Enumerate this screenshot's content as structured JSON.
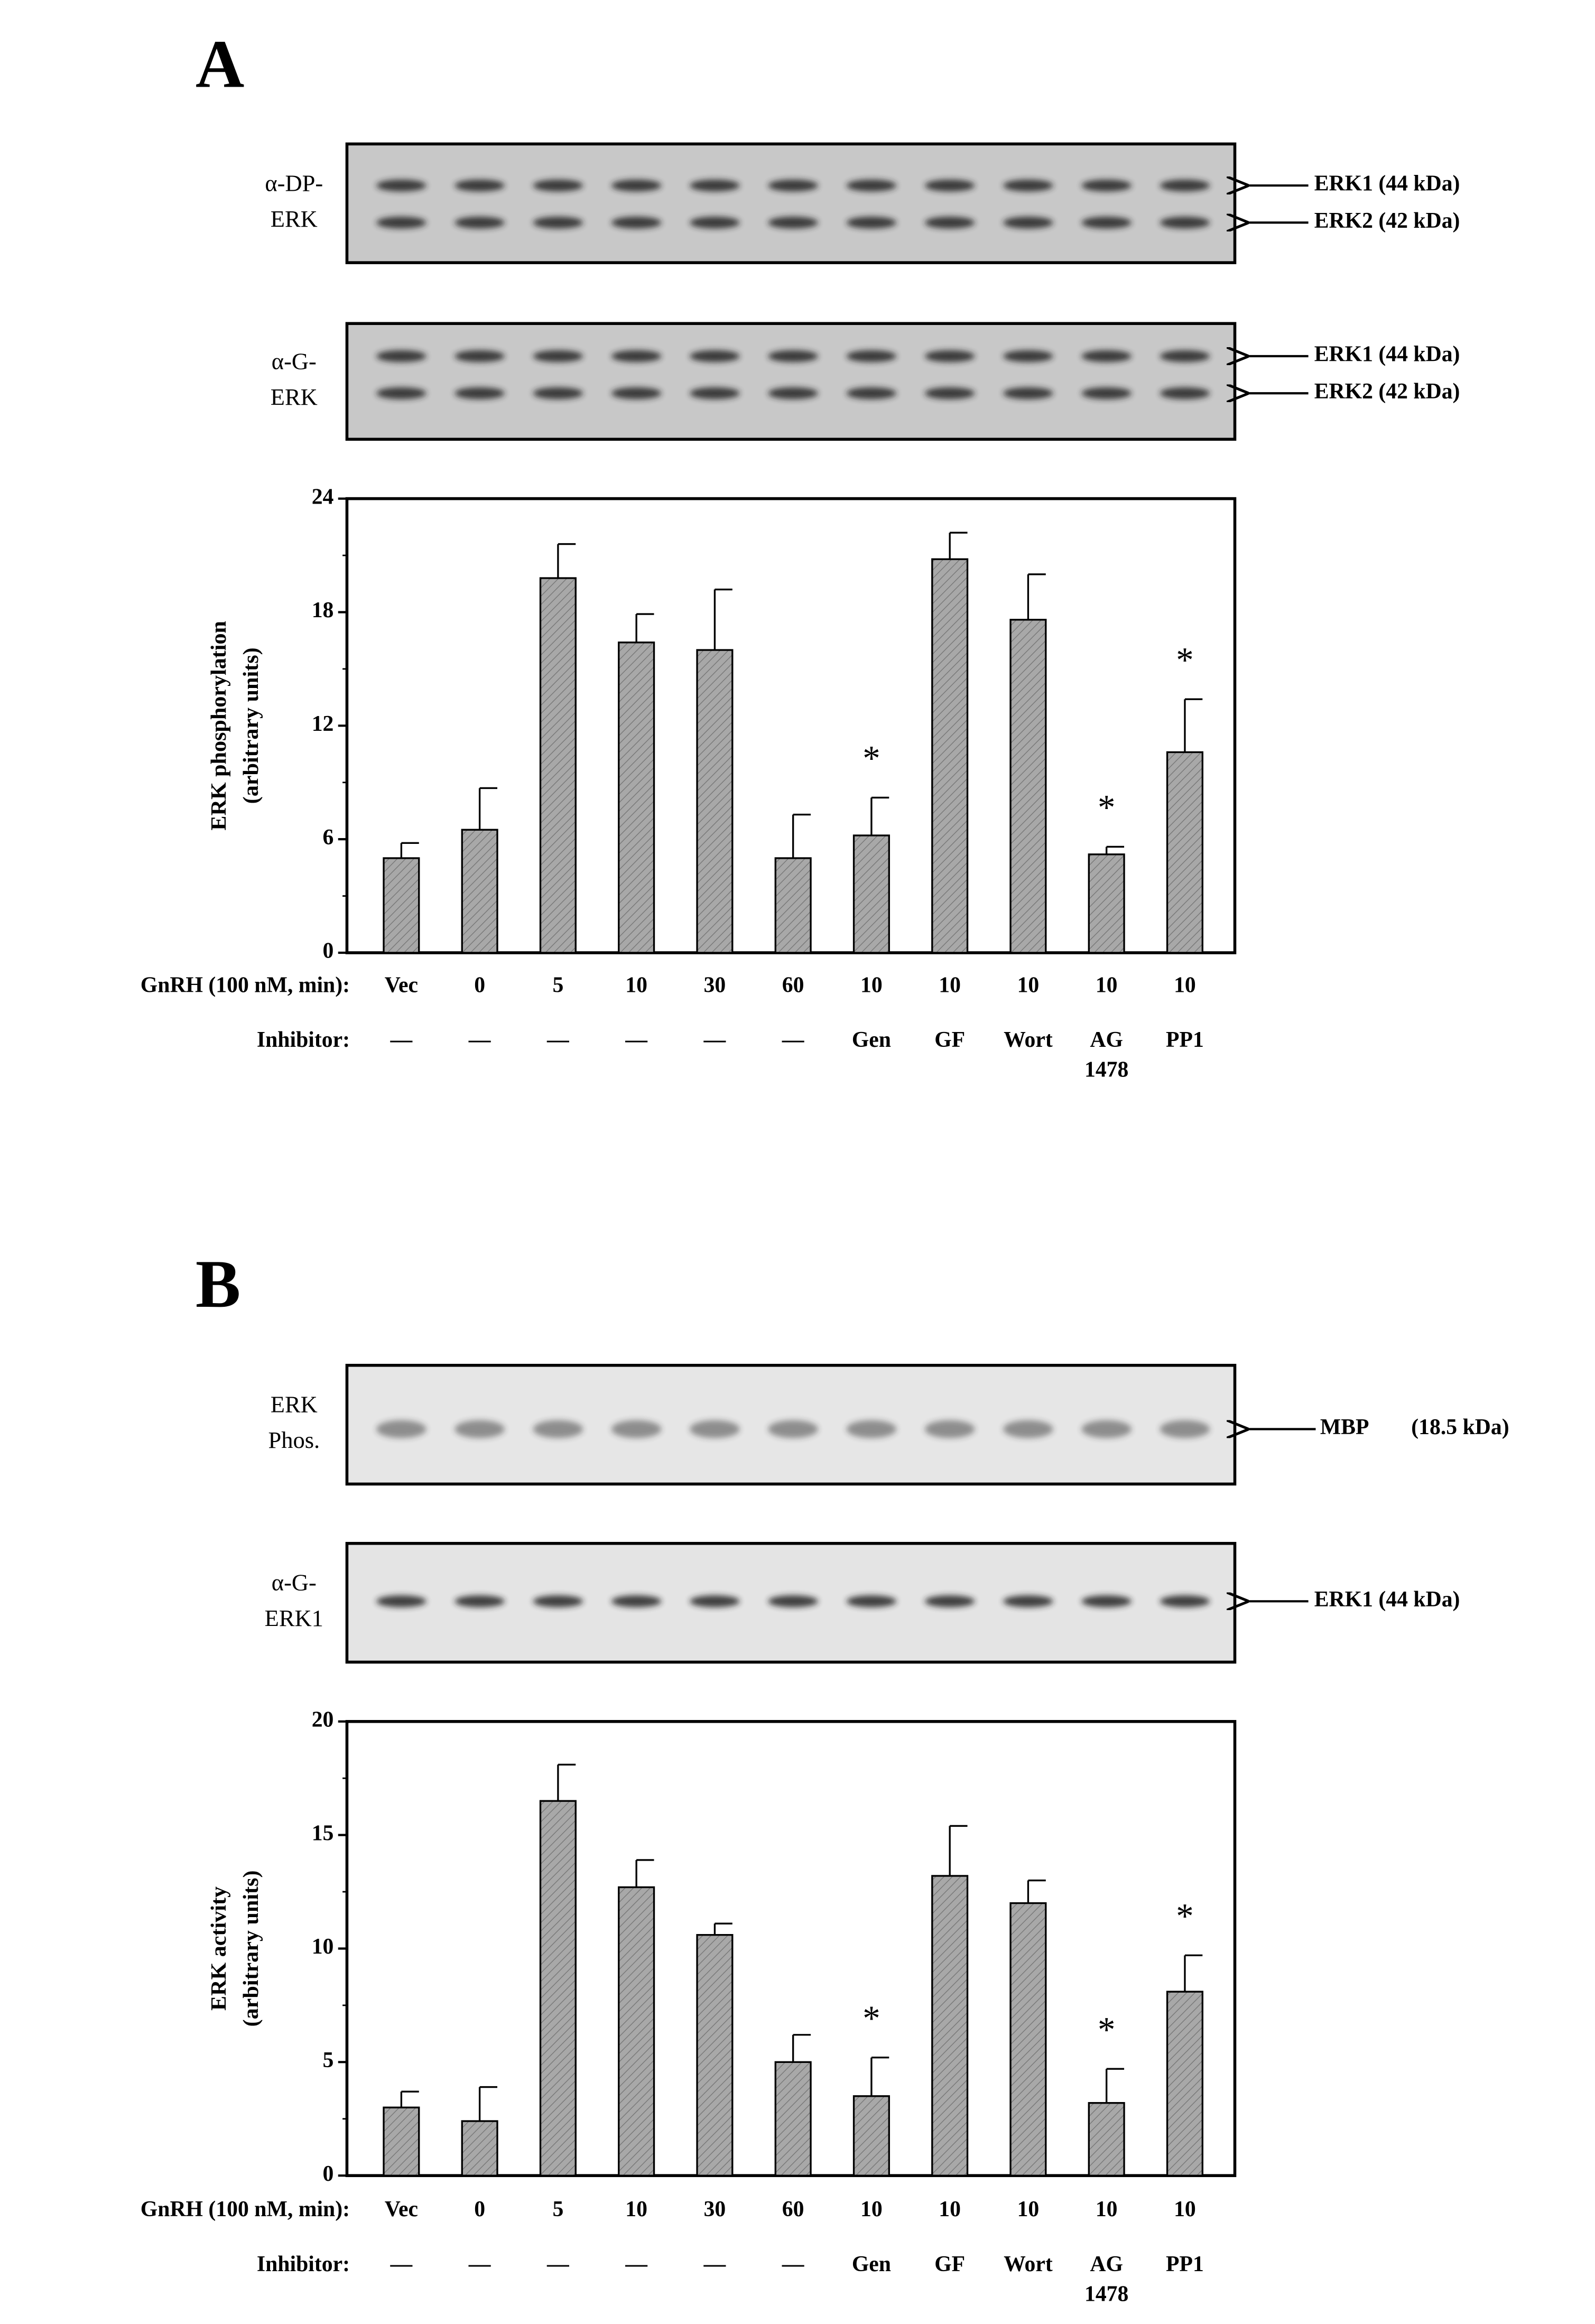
{
  "chart_data": [
    {
      "type": "bar",
      "panel": "A",
      "blots": [
        {
          "label": [
            "α-DP-",
            "ERK"
          ],
          "bands": [
            "ERK1 (44 kDa)",
            "ERK2 (42 kDa)"
          ]
        },
        {
          "label": [
            "α-G-",
            "ERK"
          ],
          "bands": [
            "ERK1 (44 kDa)",
            "ERK2 (42 kDa)"
          ]
        }
      ],
      "y_label": "ERK phosphorylation",
      "y_label_units": "(arbitrary units)",
      "x_row_label": "GnRH (100 nM, min):",
      "inhibitor_row_label": "Inhibitor:",
      "categories": [
        "Vec",
        "0",
        "5",
        "10",
        "30",
        "60",
        "10",
        "10",
        "10",
        "10",
        "10"
      ],
      "inhibitors": [
        "—",
        "—",
        "—",
        "—",
        "—",
        "—",
        "Gen",
        "GF",
        "Wort",
        [
          "AG",
          "1478"
        ],
        "PP1"
      ],
      "values": [
        5.0,
        6.5,
        19.8,
        16.4,
        16.0,
        5.0,
        6.2,
        20.8,
        17.6,
        5.2,
        10.6
      ],
      "errors": [
        0.8,
        2.2,
        1.8,
        1.5,
        3.2,
        2.3,
        2.0,
        1.4,
        2.4,
        0.4,
        2.8
      ],
      "markers": [
        null,
        null,
        null,
        null,
        null,
        null,
        "*",
        null,
        null,
        "*",
        "*"
      ],
      "color": "#a0a0a0",
      "ylim": [
        0,
        24
      ],
      "yticks": [
        0,
        6,
        12,
        18,
        24
      ]
    },
    {
      "type": "bar",
      "panel": "B",
      "blots": [
        {
          "label": [
            "ERK",
            "Phos."
          ],
          "bands": [
            "MBP",
            "(18.5 kDa)"
          ]
        },
        {
          "label": [
            "α-G-",
            "ERK1"
          ],
          "bands": [
            "ERK1 (44 kDa)"
          ]
        }
      ],
      "y_label": "ERK activity",
      "y_label_units": "(arbitrary units)",
      "x_row_label": "GnRH (100 nM, min):",
      "inhibitor_row_label": "Inhibitor:",
      "categories": [
        "Vec",
        "0",
        "5",
        "10",
        "30",
        "60",
        "10",
        "10",
        "10",
        "10",
        "10"
      ],
      "inhibitors": [
        "—",
        "—",
        "—",
        "—",
        "—",
        "—",
        "Gen",
        "GF",
        "Wort",
        [
          "AG",
          "1478"
        ],
        "PP1"
      ],
      "values": [
        3.0,
        2.4,
        16.5,
        12.7,
        10.6,
        5.0,
        3.5,
        13.2,
        12.0,
        3.2,
        8.1
      ],
      "errors": [
        0.7,
        1.5,
        1.6,
        1.2,
        0.5,
        1.2,
        1.7,
        2.2,
        1.0,
        1.5,
        1.6
      ],
      "markers": [
        null,
        null,
        null,
        null,
        null,
        null,
        "*",
        null,
        null,
        "*",
        "*"
      ],
      "color": "#a0a0a0",
      "ylim": [
        0,
        20
      ],
      "yticks": [
        0,
        5,
        10,
        15,
        20
      ]
    }
  ]
}
